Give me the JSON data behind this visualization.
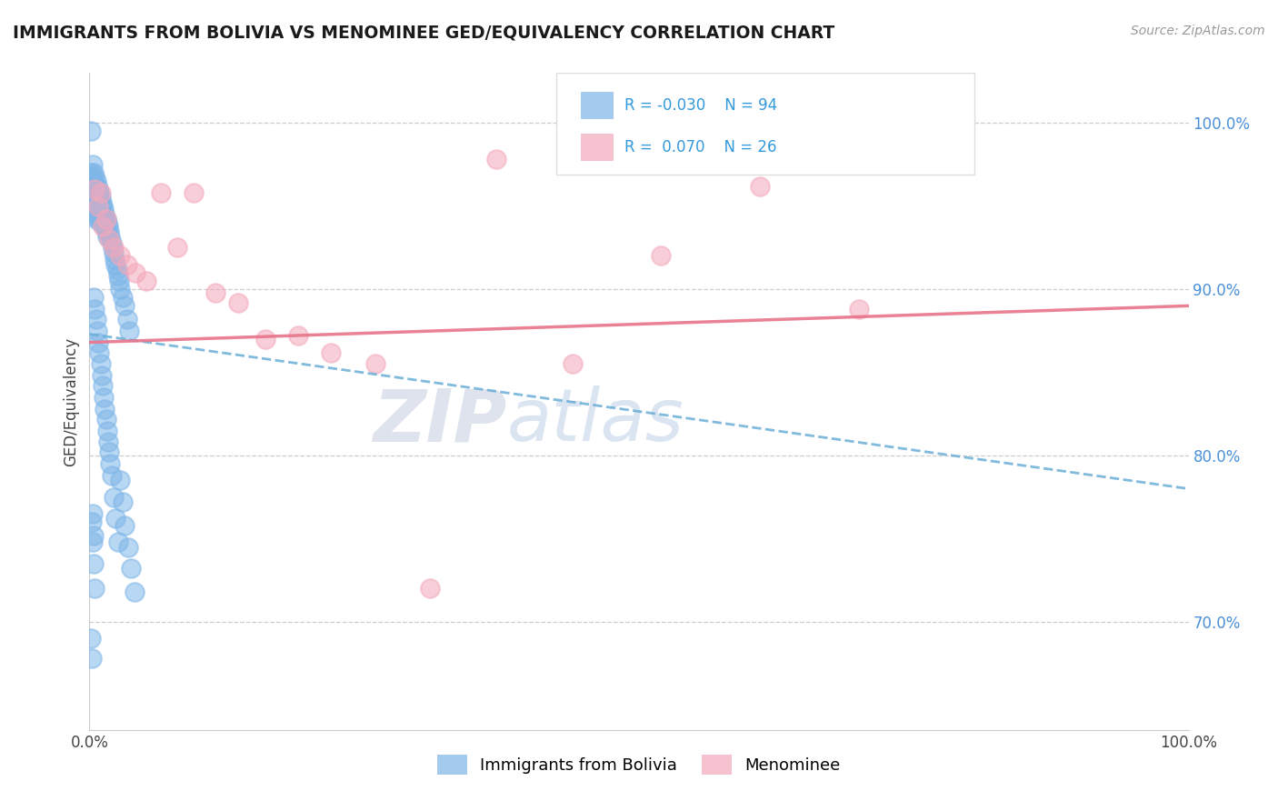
{
  "title": "IMMIGRANTS FROM BOLIVIA VS MENOMINEE GED/EQUIVALENCY CORRELATION CHART",
  "source_text": "Source: ZipAtlas.com",
  "ylabel": "GED/Equivalency",
  "ytick_labels": [
    "70.0%",
    "80.0%",
    "90.0%",
    "100.0%"
  ],
  "ytick_values": [
    0.7,
    0.8,
    0.9,
    1.0
  ],
  "xlim": [
    0.0,
    1.0
  ],
  "ylim": [
    0.635,
    1.03
  ],
  "legend_labels": [
    "Immigrants from Bolivia",
    "Menominee"
  ],
  "blue_color": "#7EB6E8",
  "pink_color": "#F4A8BB",
  "blue_line_color": "#6AAED6",
  "pink_line_color": "#E8748A",
  "blue_line_intercept": 0.873,
  "blue_line_slope": -0.093,
  "pink_line_intercept": 0.868,
  "pink_line_slope": 0.022,
  "blue_scatter_x": [
    0.001,
    0.001,
    0.002,
    0.002,
    0.002,
    0.003,
    0.003,
    0.003,
    0.003,
    0.004,
    0.004,
    0.004,
    0.004,
    0.005,
    0.005,
    0.005,
    0.006,
    0.006,
    0.006,
    0.006,
    0.007,
    0.007,
    0.007,
    0.008,
    0.008,
    0.008,
    0.009,
    0.009,
    0.009,
    0.01,
    0.01,
    0.01,
    0.011,
    0.011,
    0.012,
    0.012,
    0.013,
    0.013,
    0.014,
    0.014,
    0.015,
    0.015,
    0.016,
    0.016,
    0.017,
    0.018,
    0.019,
    0.02,
    0.021,
    0.022,
    0.023,
    0.024,
    0.025,
    0.026,
    0.027,
    0.028,
    0.03,
    0.032,
    0.034,
    0.036,
    0.004,
    0.005,
    0.006,
    0.007,
    0.008,
    0.009,
    0.01,
    0.011,
    0.012,
    0.013,
    0.014,
    0.015,
    0.016,
    0.017,
    0.018,
    0.019,
    0.02,
    0.022,
    0.024,
    0.026,
    0.028,
    0.03,
    0.032,
    0.035,
    0.038,
    0.041,
    0.002,
    0.003,
    0.004,
    0.005,
    0.001,
    0.002,
    0.003,
    0.004
  ],
  "blue_scatter_y": [
    0.995,
    0.97,
    0.968,
    0.96,
    0.952,
    0.975,
    0.965,
    0.958,
    0.95,
    0.97,
    0.962,
    0.955,
    0.945,
    0.968,
    0.96,
    0.952,
    0.965,
    0.958,
    0.95,
    0.942,
    0.962,
    0.955,
    0.947,
    0.96,
    0.952,
    0.944,
    0.958,
    0.95,
    0.942,
    0.955,
    0.948,
    0.94,
    0.952,
    0.945,
    0.95,
    0.942,
    0.948,
    0.94,
    0.945,
    0.938,
    0.942,
    0.935,
    0.94,
    0.932,
    0.938,
    0.935,
    0.932,
    0.928,
    0.925,
    0.922,
    0.918,
    0.915,
    0.912,
    0.908,
    0.905,
    0.9,
    0.895,
    0.89,
    0.882,
    0.875,
    0.895,
    0.888,
    0.882,
    0.875,
    0.868,
    0.862,
    0.855,
    0.848,
    0.842,
    0.835,
    0.828,
    0.822,
    0.815,
    0.808,
    0.802,
    0.795,
    0.788,
    0.775,
    0.762,
    0.748,
    0.785,
    0.772,
    0.758,
    0.745,
    0.732,
    0.718,
    0.76,
    0.748,
    0.735,
    0.72,
    0.69,
    0.678,
    0.765,
    0.752
  ],
  "pink_scatter_x": [
    0.005,
    0.008,
    0.01,
    0.012,
    0.015,
    0.018,
    0.022,
    0.028,
    0.034,
    0.042,
    0.052,
    0.065,
    0.08,
    0.095,
    0.115,
    0.135,
    0.16,
    0.19,
    0.22,
    0.26,
    0.31,
    0.37,
    0.44,
    0.52,
    0.61,
    0.7
  ],
  "pink_scatter_y": [
    0.96,
    0.95,
    0.958,
    0.938,
    0.942,
    0.93,
    0.925,
    0.92,
    0.915,
    0.91,
    0.905,
    0.958,
    0.925,
    0.958,
    0.898,
    0.892,
    0.87,
    0.872,
    0.862,
    0.855,
    0.72,
    0.978,
    0.855,
    0.92,
    0.962,
    0.888
  ]
}
